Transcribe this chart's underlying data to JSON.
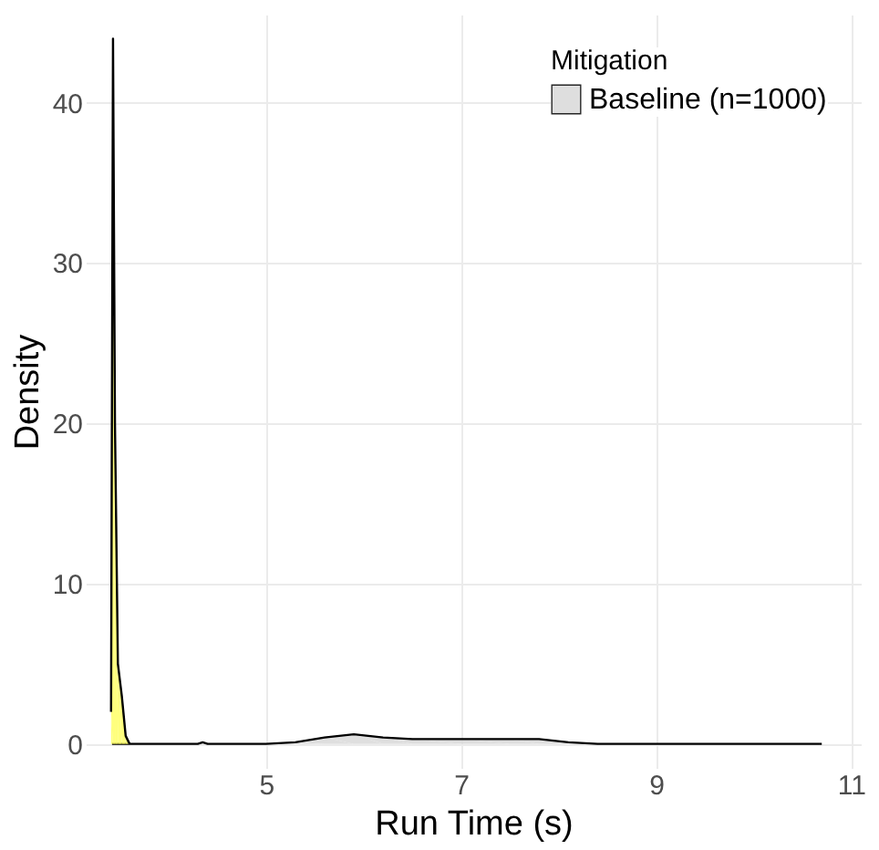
{
  "chart_data": {
    "type": "area",
    "xlabel": "Run Time (s)",
    "ylabel": "Density",
    "legend_title": "Mitigation",
    "xlim": [
      3.15,
      11.1
    ],
    "ylim": [
      -1.5,
      45.5
    ],
    "xticks": [
      5,
      7,
      9,
      11
    ],
    "yticks": [
      0,
      10,
      20,
      30,
      40
    ],
    "grid": true,
    "legend": "top right",
    "series": [
      {
        "name": "Baseline (n=1000)",
        "color": "#d9d9d9",
        "x": [
          3.42,
          3.8,
          4.3,
          4.35,
          4.4,
          5.0,
          5.3,
          5.6,
          5.9,
          6.2,
          6.5,
          7.0,
          7.5,
          7.8,
          8.1,
          8.4,
          8.8,
          9.5,
          10.7
        ],
        "values": [
          0.0,
          0.0,
          0.0,
          0.1,
          0.0,
          0.0,
          0.1,
          0.4,
          0.6,
          0.4,
          0.3,
          0.3,
          0.3,
          0.3,
          0.1,
          0.0,
          0.0,
          0.0,
          0.0
        ]
      },
      {
        "color": "#ffff66",
        "x": [
          3.41,
          3.43,
          3.45,
          3.48,
          3.52,
          3.56,
          3.6
        ],
        "values": [
          2.0,
          44.0,
          20.0,
          5.0,
          3.0,
          0.5,
          0.0
        ]
      }
    ]
  }
}
